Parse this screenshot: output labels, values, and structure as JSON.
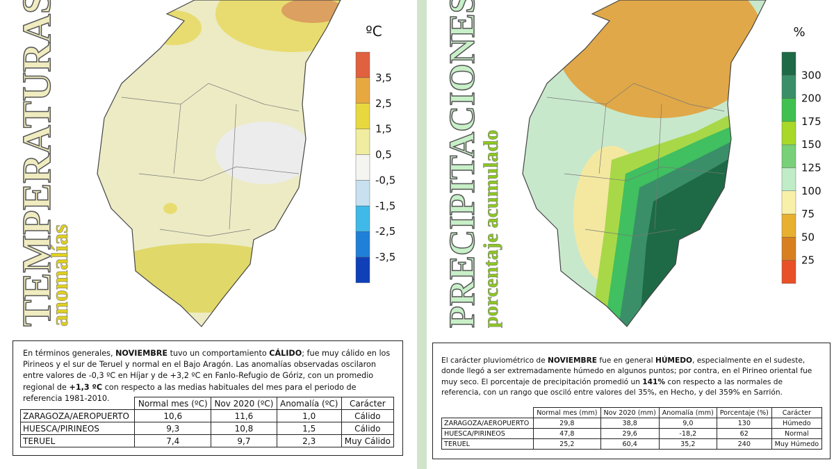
{
  "temperature": {
    "title": "TEMPERATURAS",
    "subtitle": "anomalías",
    "legend": {
      "unit": "ºC",
      "labels": [
        "3,5",
        "2,5",
        "1,5",
        "0,5",
        "-0,5",
        "-1,5",
        "-2,5",
        "-3,5"
      ],
      "colors": [
        "#e06040",
        "#e8a840",
        "#e8d840",
        "#f0eca0",
        "#f4f4f0",
        "#c8e0f0",
        "#40b8e8",
        "#2080d8",
        "#1040b8"
      ]
    },
    "summary": [
      "En términos generales, ",
      {
        "text": "NOVIEMBRE",
        "bold": true
      },
      " tuvo un comportamiento ",
      {
        "text": "CÁLIDO",
        "bold": true
      },
      "; fue muy cálido en los Pirineos y el sur de Teruel y normal en el Bajo Aragón. Las anomalías observadas oscilaron entre valores de -0,3 ºC en Híjar y de +3,2 ºC en Fanlo-Refugio de Góriz, con un promedio regional de ",
      {
        "text": "+1,3 ºC",
        "bold": true
      },
      " con respecto a las medias habituales del mes para el periodo de referencia 1981-2010."
    ],
    "table": {
      "header": [
        "Normal mes (ºC)",
        "Nov 2020 (ºC)",
        "Anomalía (ºC)",
        "Carácter"
      ],
      "rows": [
        [
          "ZARAGOZA/AEROPUERTO",
          "10,6",
          "11,6",
          "1,0",
          "Cálido"
        ],
        [
          "HUESCA/PIRINEOS",
          "9,3",
          "10,8",
          "1,5",
          "Cálido"
        ],
        [
          "TERUEL",
          "7,4",
          "9,7",
          "2,3",
          "Muy Cálido"
        ]
      ]
    }
  },
  "precipitation": {
    "title": "PRECIPITACIONES",
    "subtitle": "porcentaje acumulado",
    "legend": {
      "unit": "%",
      "labels": [
        "300",
        "200",
        "175",
        "150",
        "125",
        "100",
        "75",
        "50",
        "25"
      ],
      "colors": [
        "#1e6a46",
        "#3a8f68",
        "#40c050",
        "#a8d828",
        "#78d078",
        "#c0ecc8",
        "#f8f0a8",
        "#e8b030",
        "#d88020",
        "#e85028"
      ]
    },
    "summary": [
      "El carácter pluviométrico de ",
      {
        "text": "NOVIEMBRE",
        "bold": true
      },
      " fue en general ",
      {
        "text": "HÚMEDO",
        "bold": true
      },
      ", especialmente en el sudeste, donde llegó a ser extremadamente húmedo en algunos puntos; por contra, en el Pirineo oriental fue muy seco. El porcentaje de precipitación promedió un ",
      {
        "text": "141%",
        "bold": true
      },
      " con respecto a las normales de referencia, con un rango que osciló entre valores del 35%, en Hecho, y del 359% en Sarrión."
    ],
    "table": {
      "header": [
        "Normal mes (mm)",
        "Nov 2020 (mm)",
        "Anomalía (mm)",
        "Porcentaje (%)",
        "Carácter"
      ],
      "rows": [
        [
          "ZARAGOZA/AEROPUERTO",
          "29,8",
          "38,8",
          "9,0",
          "130",
          "Húmedo"
        ],
        [
          "HUESCA/PIRINEOS",
          "47,8",
          "29,6",
          "-18,2",
          "62",
          "Normal"
        ],
        [
          "TERUEL",
          "25,2",
          "60,4",
          "35,2",
          "240",
          "Muy Húmedo"
        ]
      ]
    }
  }
}
